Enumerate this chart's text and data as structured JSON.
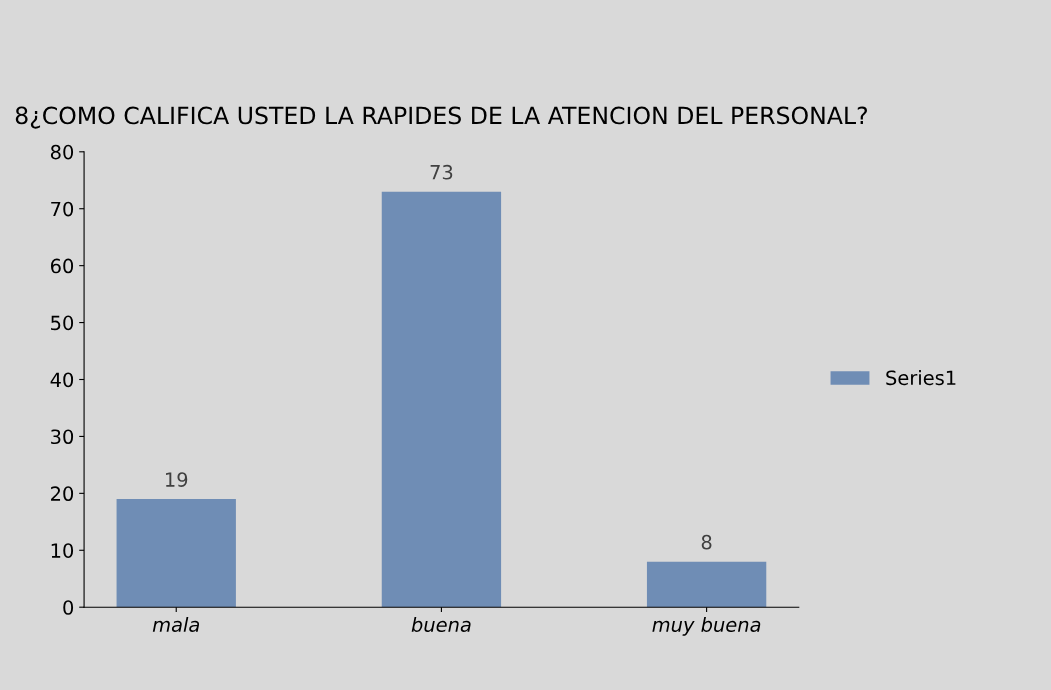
{
  "chart_data": {
    "type": "bar",
    "title": "8¿COMO CALIFICA USTED LA RAPIDES DE LA ATENCION DEL PERSONAL?",
    "categories": [
      "mala",
      "buena",
      "muy buena"
    ],
    "series": [
      {
        "name": "Series1",
        "color": "#6f8db5",
        "values": [
          19,
          73,
          8
        ]
      }
    ],
    "ylim": [
      0,
      80
    ],
    "yticks": [
      0,
      10,
      20,
      30,
      40,
      50,
      60,
      70,
      80
    ],
    "data_labels": true,
    "grid": false,
    "legend": "right"
  }
}
